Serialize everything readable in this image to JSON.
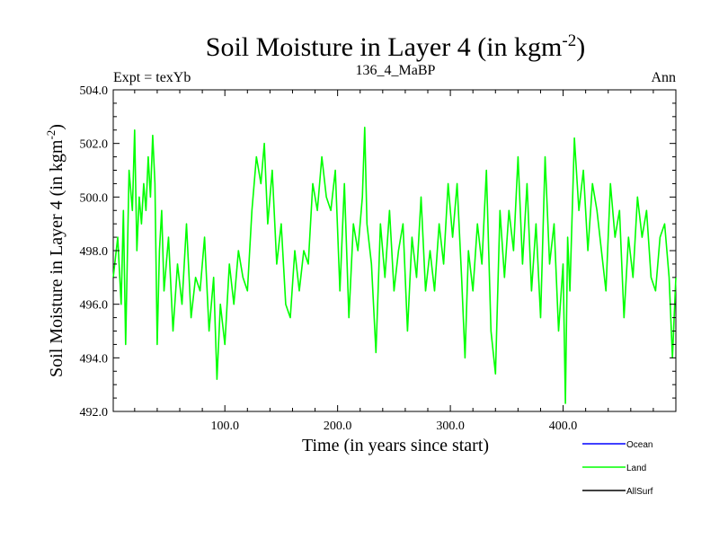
{
  "chart_data": {
    "type": "line",
    "title": "Soil Moisture in Layer 4 (in kgm",
    "title_superscript": "-2",
    "title_close": ")",
    "left_label": "Expt = texYb",
    "center_label": "136_4_MaBP",
    "right_label": "Ann",
    "xlabel": "Time (in years since start)",
    "ylabel": "Soil Moisture in Layer 4 (in kgm",
    "ylabel_superscript": "-2",
    "ylabel_close": ")",
    "xlim": [
      1,
      500
    ],
    "ylim": [
      492.0,
      504.0
    ],
    "xticks": [
      100,
      200,
      300,
      400
    ],
    "xtick_labels": [
      "100.0",
      "200.0",
      "300.0",
      "400.0"
    ],
    "yticks": [
      492,
      494,
      496,
      498,
      500,
      502,
      504
    ],
    "ytick_labels": [
      "492.0",
      "494.0",
      "496.0",
      "498.0",
      "500.0",
      "502.0",
      "504.0"
    ],
    "grid": false,
    "legend_position": "bottom-right",
    "series": [
      {
        "name": "Ocean",
        "color": "#0000ff",
        "x": [],
        "y": []
      },
      {
        "name": "Land",
        "color": "#00ff00",
        "x": [
          1,
          5,
          8,
          10,
          12,
          15,
          18,
          20,
          22,
          24,
          26,
          28,
          30,
          32,
          34,
          36,
          38,
          40,
          42,
          44,
          46,
          50,
          54,
          58,
          62,
          66,
          70,
          74,
          78,
          82,
          86,
          90,
          93,
          96,
          100,
          104,
          108,
          112,
          116,
          120,
          124,
          128,
          132,
          135,
          138,
          142,
          146,
          150,
          154,
          158,
          162,
          166,
          170,
          174,
          178,
          182,
          186,
          190,
          194,
          198,
          202,
          206,
          210,
          214,
          218,
          222,
          224,
          226,
          230,
          234,
          238,
          242,
          246,
          250,
          254,
          258,
          262,
          266,
          270,
          274,
          278,
          282,
          286,
          290,
          294,
          298,
          302,
          306,
          310,
          313,
          316,
          320,
          324,
          328,
          332,
          336,
          340,
          344,
          348,
          352,
          356,
          360,
          364,
          368,
          372,
          376,
          380,
          384,
          388,
          392,
          396,
          400,
          402,
          404,
          406,
          410,
          414,
          418,
          422,
          426,
          430,
          434,
          438,
          442,
          446,
          450,
          454,
          458,
          462,
          466,
          470,
          474,
          478,
          482,
          486,
          490,
          494,
          497,
          500
        ],
        "y": [
          497.0,
          498.5,
          496.0,
          499.5,
          494.5,
          501.0,
          499.5,
          502.5,
          498.0,
          500.0,
          499.0,
          500.5,
          499.5,
          501.5,
          500.0,
          502.3,
          500.5,
          494.5,
          498.0,
          499.5,
          496.5,
          498.5,
          495.0,
          497.5,
          496.0,
          499.0,
          495.5,
          497.0,
          496.5,
          498.5,
          495.0,
          497.0,
          493.2,
          496.0,
          494.5,
          497.5,
          496.0,
          498.0,
          497.0,
          496.5,
          499.5,
          501.5,
          500.5,
          502.0,
          499.0,
          501.0,
          497.5,
          499.0,
          496.0,
          495.5,
          498.0,
          496.5,
          498.0,
          497.5,
          500.5,
          499.5,
          501.5,
          500.0,
          499.5,
          501.0,
          496.5,
          500.5,
          495.5,
          499.0,
          498.0,
          500.0,
          502.6,
          499.0,
          497.5,
          494.2,
          499.0,
          497.0,
          499.5,
          496.5,
          498.0,
          499.0,
          495.0,
          498.5,
          497.0,
          500.0,
          496.5,
          498.0,
          496.5,
          499.0,
          497.5,
          500.5,
          498.5,
          500.5,
          497.0,
          494.0,
          498.0,
          496.5,
          499.0,
          497.5,
          501.0,
          495.0,
          493.4,
          499.5,
          497.0,
          499.5,
          498.0,
          501.5,
          497.5,
          500.5,
          496.5,
          499.0,
          495.5,
          501.5,
          497.5,
          499.0,
          495.0,
          497.5,
          492.3,
          498.5,
          496.5,
          502.2,
          499.5,
          501.0,
          498.0,
          500.5,
          499.5,
          498.0,
          496.5,
          500.5,
          498.5,
          499.5,
          495.5,
          498.5,
          497.0,
          500.0,
          498.5,
          499.5,
          497.0,
          496.5,
          498.5,
          499.0,
          497.0,
          494.0,
          497.0
        ]
      },
      {
        "name": "AllSurf",
        "color": "#000000",
        "x": [],
        "y": []
      }
    ]
  }
}
